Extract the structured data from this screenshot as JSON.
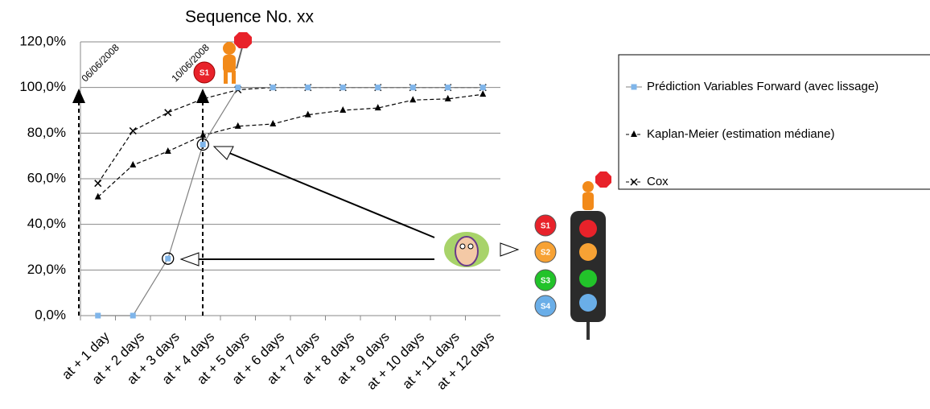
{
  "chart_data": {
    "type": "line",
    "title": "Sequence No. xx",
    "categories": [
      "at + 1 day",
      "at + 2 days",
      "at + 3 days",
      "at + 4 days",
      "at + 5 days",
      "at + 6 days",
      "at + 7 days",
      "at + 8 days",
      "at + 9 days",
      "at + 10 days",
      "at + 11 days",
      "at + 12 days"
    ],
    "series": [
      {
        "name": "Prédiction Variables Forward (avec lissage)",
        "color": "#7fb5ea",
        "line_color": "#808080",
        "marker": "square",
        "dash": false,
        "values": [
          0,
          0,
          25,
          75,
          100,
          100,
          100,
          100,
          100,
          100,
          100,
          100
        ]
      },
      {
        "name": "Kaplan-Meier (estimation médiane)",
        "color": "#000000",
        "line_color": "#000000",
        "marker": "triangle",
        "dash": true,
        "values": [
          52,
          66,
          72,
          79,
          83,
          84,
          88,
          90,
          91,
          94.5,
          95,
          97
        ]
      },
      {
        "name": "Cox",
        "color": "#000000",
        "line_color": "#000000",
        "marker": "x",
        "dash": true,
        "values": [
          58,
          81,
          89,
          95,
          99,
          100,
          100,
          100,
          100,
          100,
          100,
          100
        ]
      }
    ],
    "ylim": [
      0,
      120
    ],
    "yticks": [
      {
        "value": 0,
        "label": "0,0%"
      },
      {
        "value": 20,
        "label": "20,0%"
      },
      {
        "value": 40,
        "label": "40,0%"
      },
      {
        "value": 60,
        "label": "60,0%"
      },
      {
        "value": 80,
        "label": "80,0%"
      },
      {
        "value": 100,
        "label": "100,0%"
      },
      {
        "value": 120,
        "label": "120,0%"
      }
    ],
    "grid": true,
    "annotations": [
      "06/06/2008",
      "10/06/2008",
      "S1"
    ]
  },
  "signals": [
    "S1",
    "S2",
    "S3",
    "S4"
  ]
}
